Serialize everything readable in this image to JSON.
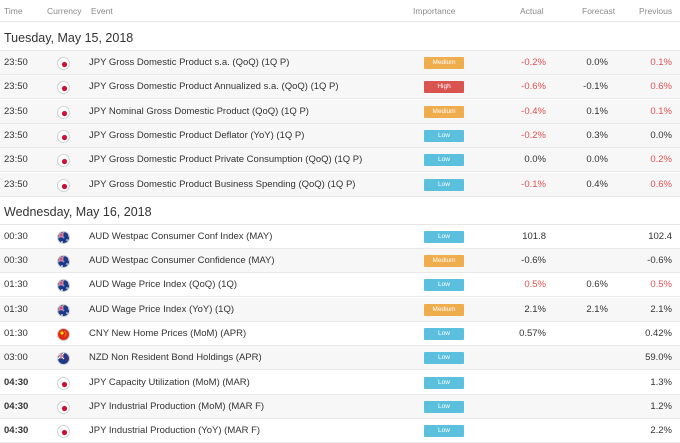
{
  "headers": {
    "time": "Time",
    "currency": "Currency",
    "event": "Event",
    "importance": "Importance",
    "actual": "Actual",
    "forecast": "Forecast",
    "previous": "Previous"
  },
  "colors": {
    "low": "#5bc0de",
    "medium": "#f0ad4e",
    "high": "#d9534f",
    "negative": "#e05050"
  },
  "days": [
    {
      "date": "Tuesday, May 15, 2018",
      "events": [
        {
          "time": "23:50",
          "currency": "JPY",
          "flag_icon": "japan-flag-icon",
          "event": "JPY Gross Domestic Product s.a. (QoQ) (1Q P)",
          "importance": "Medium",
          "actual": "-0.2%",
          "actual_neg": true,
          "forecast": "0.0%",
          "previous": "0.1%",
          "previous_neg": true
        },
        {
          "time": "23:50",
          "currency": "JPY",
          "flag_icon": "japan-flag-icon",
          "event": "JPY Gross Domestic Product Annualized s.a. (QoQ) (1Q P)",
          "importance": "High",
          "actual": "-0.6%",
          "actual_neg": true,
          "forecast": "-0.1%",
          "previous": "0.6%",
          "previous_neg": true
        },
        {
          "time": "23:50",
          "currency": "JPY",
          "flag_icon": "japan-flag-icon",
          "event": "JPY Nominal Gross Domestic Product (QoQ) (1Q P)",
          "importance": "Medium",
          "actual": "-0.4%",
          "actual_neg": true,
          "forecast": "0.1%",
          "previous": "0.1%",
          "previous_neg": true
        },
        {
          "time": "23:50",
          "currency": "JPY",
          "flag_icon": "japan-flag-icon",
          "event": "JPY Gross Domestic Product Deflator (YoY) (1Q P)",
          "importance": "Low",
          "actual": "-0.2%",
          "actual_neg": true,
          "forecast": "0.3%",
          "previous": "0.0%",
          "previous_neg": false
        },
        {
          "time": "23:50",
          "currency": "JPY",
          "flag_icon": "japan-flag-icon",
          "event": "JPY Gross Domestic Product Private Consumption (QoQ) (1Q P)",
          "importance": "Low",
          "actual": "0.0%",
          "actual_neg": false,
          "forecast": "0.0%",
          "previous": "0.2%",
          "previous_neg": true
        },
        {
          "time": "23:50",
          "currency": "JPY",
          "flag_icon": "japan-flag-icon",
          "event": "JPY Gross Domestic Product Business Spending (QoQ) (1Q P)",
          "importance": "Low",
          "actual": "-0.1%",
          "actual_neg": true,
          "forecast": "0.4%",
          "previous": "0.6%",
          "previous_neg": true
        }
      ]
    },
    {
      "date": "Wednesday, May 16, 2018",
      "events": [
        {
          "time": "00:30",
          "bold": false,
          "currency": "AUD",
          "flag_icon": "australia-flag-icon",
          "event": "AUD Westpac Consumer Conf Index (MAY)",
          "importance": "Low",
          "actual": "101.8",
          "actual_neg": false,
          "forecast": "",
          "previous": "102.4",
          "previous_neg": false
        },
        {
          "time": "00:30",
          "bold": false,
          "currency": "AUD",
          "flag_icon": "australia-flag-icon",
          "event": "AUD Westpac Consumer Confidence (MAY)",
          "importance": "Medium",
          "actual": "-0.6%",
          "actual_neg": false,
          "forecast": "",
          "previous": "-0.6%",
          "previous_neg": false
        },
        {
          "time": "01:30",
          "bold": false,
          "currency": "AUD",
          "flag_icon": "australia-flag-icon",
          "event": "AUD Wage Price Index (QoQ) (1Q)",
          "importance": "Low",
          "actual": "0.5%",
          "actual_neg": true,
          "forecast": "0.6%",
          "previous": "0.5%",
          "previous_neg": true
        },
        {
          "time": "01:30",
          "bold": false,
          "currency": "AUD",
          "flag_icon": "australia-flag-icon",
          "event": "AUD Wage Price Index (YoY) (1Q)",
          "importance": "Medium",
          "actual": "2.1%",
          "actual_neg": false,
          "forecast": "2.1%",
          "previous": "2.1%",
          "previous_neg": false
        },
        {
          "time": "01:30",
          "bold": false,
          "currency": "CNY",
          "flag_icon": "china-flag-icon",
          "event": "CNY New Home Prices (MoM) (APR)",
          "importance": "Low",
          "actual": "0.57%",
          "actual_neg": false,
          "forecast": "",
          "previous": "0.42%",
          "previous_neg": false
        },
        {
          "time": "03:00",
          "bold": false,
          "currency": "NZD",
          "flag_icon": "new-zealand-flag-icon",
          "event": "NZD Non Resident Bond Holdings (APR)",
          "importance": "Low",
          "actual": "",
          "actual_neg": false,
          "forecast": "",
          "previous": "59.0%",
          "previous_neg": false
        },
        {
          "time": "04:30",
          "bold": true,
          "currency": "JPY",
          "flag_icon": "japan-flag-icon",
          "event": "JPY Capacity Utilization (MoM) (MAR)",
          "importance": "Low",
          "actual": "",
          "actual_neg": false,
          "forecast": "",
          "previous": "1.3%",
          "previous_neg": false
        },
        {
          "time": "04:30",
          "bold": true,
          "currency": "JPY",
          "flag_icon": "japan-flag-icon",
          "event": "JPY Industrial Production (MoM) (MAR F)",
          "importance": "Low",
          "actual": "",
          "actual_neg": false,
          "forecast": "",
          "previous": "1.2%",
          "previous_neg": false
        },
        {
          "time": "04:30",
          "bold": true,
          "currency": "JPY",
          "flag_icon": "japan-flag-icon",
          "event": "JPY Industrial Production (YoY) (MAR F)",
          "importance": "Low",
          "actual": "",
          "actual_neg": false,
          "forecast": "",
          "previous": "2.2%",
          "previous_neg": false
        }
      ]
    }
  ]
}
